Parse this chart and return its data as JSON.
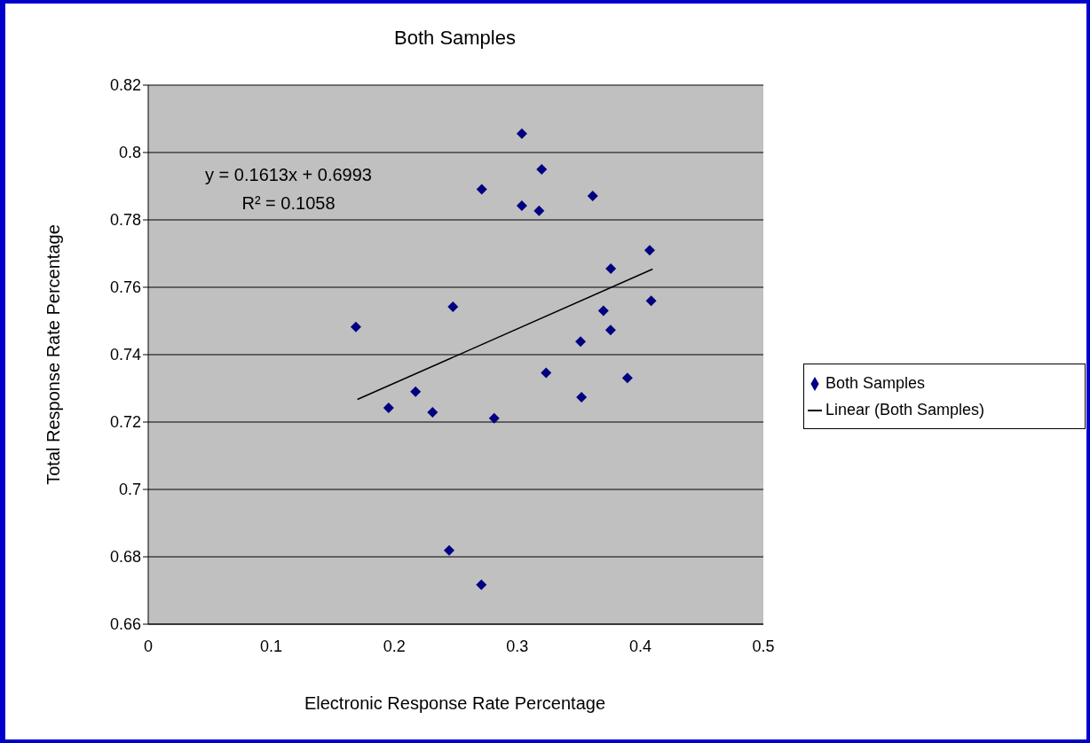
{
  "chart_data": {
    "type": "scatter",
    "title": "Both Samples",
    "xlabel": "Electronic Response Rate Percentage",
    "ylabel": "Total Response Rate Percentage",
    "xlim": [
      0,
      0.5
    ],
    "xticks": [
      0,
      0.1,
      0.2,
      0.3,
      0.4,
      0.5
    ],
    "ylim": [
      0.66,
      0.82
    ],
    "yticks": [
      0.66,
      0.68,
      0.7,
      0.72,
      0.74,
      0.76,
      0.78,
      0.8,
      0.82
    ],
    "grid": "y",
    "legend": "right",
    "annotations": [
      "y = 0.1613x + 0.6993",
      "R² = 0.1058"
    ],
    "series": [
      {
        "name": "Both Samples",
        "marker": "diamond",
        "color": "#000080",
        "x": [
          0.3037,
          0.3198,
          0.2711,
          0.3037,
          0.3177,
          0.3613,
          0.4076,
          0.376,
          0.4088,
          0.2477,
          0.1688,
          0.37,
          0.3758,
          0.3514,
          0.1954,
          0.2173,
          0.2311,
          0.2812,
          0.3234,
          0.3522,
          0.3895,
          0.2446,
          0.2708
        ],
        "values": [
          0.8056,
          0.795,
          0.7891,
          0.7842,
          0.7827,
          0.7871,
          0.771,
          0.7655,
          0.756,
          0.7542,
          0.7482,
          0.753,
          0.7473,
          0.7439,
          0.7242,
          0.729,
          0.7229,
          0.7211,
          0.7346,
          0.7274,
          0.7331,
          0.6819,
          0.6717
        ]
      },
      {
        "name": "Linear (Both Samples)",
        "type": "line",
        "marker": "none",
        "color": "#000000",
        "x": [
          0.17,
          0.41
        ],
        "values": [
          0.7267,
          0.7654
        ]
      }
    ]
  }
}
